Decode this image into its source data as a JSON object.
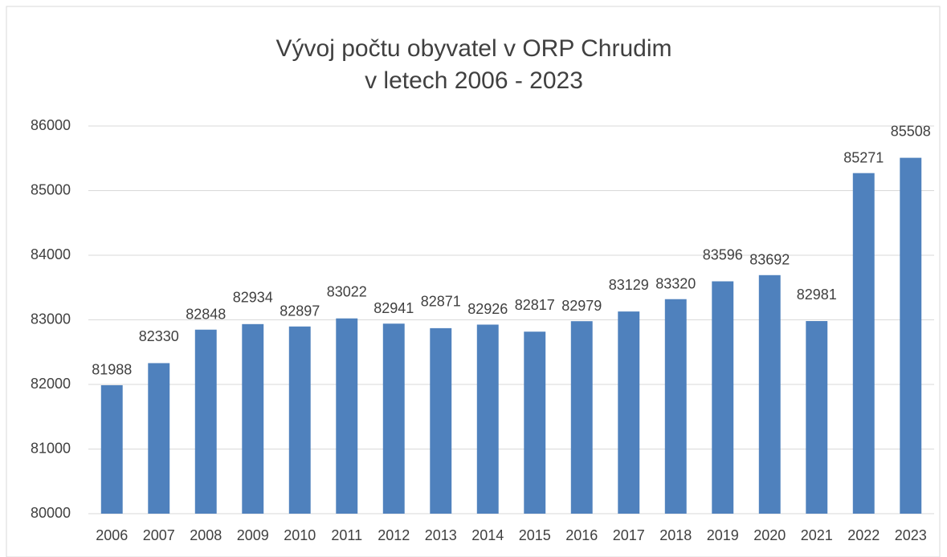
{
  "chart_data": {
    "type": "bar",
    "title": [
      "Vývoj počtu obyvatel v ORP Chrudim",
      "v letech 2006 - 2023"
    ],
    "categories": [
      "2006",
      "2007",
      "2008",
      "2009",
      "2010",
      "2011",
      "2012",
      "2013",
      "2014",
      "2015",
      "2016",
      "2017",
      "2018",
      "2019",
      "2020",
      "2021",
      "2022",
      "2023"
    ],
    "values": [
      81988,
      82330,
      82848,
      82934,
      82897,
      83022,
      82941,
      82871,
      82926,
      82817,
      82979,
      83129,
      83320,
      83596,
      83692,
      82981,
      85271,
      85508
    ],
    "color": "#4f81bd",
    "ylim": [
      80000,
      86000
    ],
    "yticks": [
      80000,
      81000,
      82000,
      83000,
      84000,
      85000,
      86000
    ],
    "grid": true
  }
}
